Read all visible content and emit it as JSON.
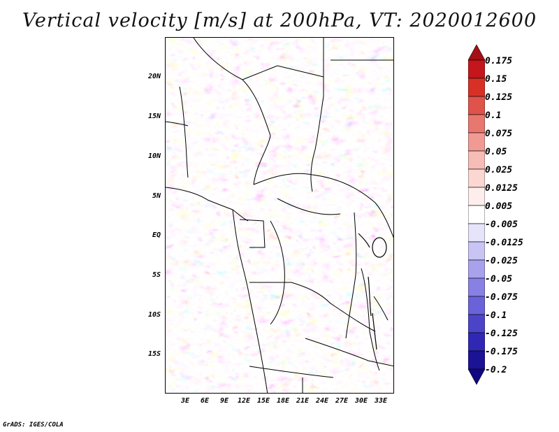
{
  "title": "Vertical velocity [m/s] at 200hPa, VT: 2020012600",
  "credit": "GrADS: IGES/COLA",
  "map": {
    "lat_labels": [
      "20N",
      "15N",
      "10N",
      "5N",
      "EQ",
      "5S",
      "10S",
      "15S"
    ],
    "lon_labels": [
      "3E",
      "6E",
      "9E",
      "12E",
      "15E",
      "18E",
      "21E",
      "24E",
      "27E",
      "30E",
      "33E"
    ]
  },
  "colorbar": {
    "labels": [
      "0.175",
      "0.15",
      "0.125",
      "0.1",
      "0.075",
      "0.05",
      "0.025",
      "0.0125",
      "0.005",
      "-0.005",
      "-0.0125",
      "-0.025",
      "-0.05",
      "-0.075",
      "-0.1",
      "-0.125",
      "-0.175",
      "-0.2"
    ],
    "colors": [
      "#a50f15",
      "#c4161c",
      "#d73027",
      "#e0534a",
      "#e8776f",
      "#f09a93",
      "#f6bcb6",
      "#fbd7d2",
      "#fdeeed",
      "#ffffff",
      "#e6e4fb",
      "#c8c4f4",
      "#a8a2ec",
      "#8880e3",
      "#6a62d8",
      "#4c44c8",
      "#3028b4",
      "#1c1296",
      "#100880"
    ],
    "tag_color_positive": "#a50f15",
    "tag_color_negative": "#100880"
  }
}
